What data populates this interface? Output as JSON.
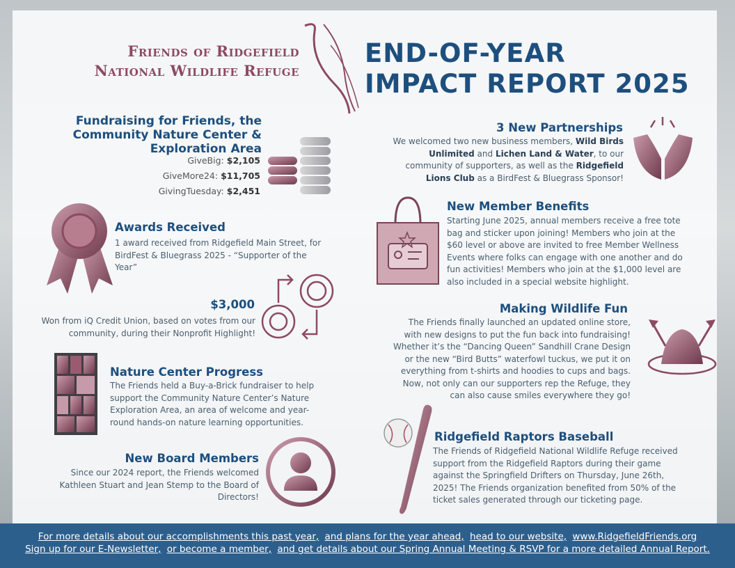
{
  "header": {
    "org_name": [
      "Friends of Ridgefield",
      "National Wildlife Refuge"
    ],
    "title": [
      "END-OF-YEAR",
      "IMPACT REPORT 2025"
    ]
  },
  "sections": {
    "fundraising": {
      "heading": "Fundraising for Friends, the Community Nature Center & Exploration Area",
      "items": [
        {
          "label": "GiveBig:",
          "value": "$2,105"
        },
        {
          "label": "GiveMore24:",
          "value": "$11,705"
        },
        {
          "label": "GivingTuesday:",
          "value": "$2,451"
        }
      ]
    },
    "awards": {
      "heading": "Awards Received",
      "body": "1 award received from Ridgefield Main Street, for BirdFest & Bluegrass 2025 - “Supporter of the Year”"
    },
    "prize": {
      "heading": "$3,000",
      "body": "Won from iQ Credit Union, based on votes from our community, during their Nonprofit Highlight!"
    },
    "nature_center": {
      "heading": "Nature Center Progress",
      "body": "The Friends held a Buy-a-Brick fundraiser to help support the Community Nature Center’s Nature Exploration Area, an area of welcome and year-round hands-on nature learning opportunities."
    },
    "board": {
      "heading": "New Board Members",
      "body": "Since our 2024 report, the Friends welcomed Kathleen Stuart and Jean Stemp to the Board of Directors!"
    },
    "partnerships": {
      "heading": "3 New Partnerships",
      "body": [
        "We welcomed two new business members, ",
        "Wild Birds Unlimited",
        " and ",
        "Lichen Land & Water",
        ", to our community of supporters, as well as the ",
        "Ridgefield Lions Club",
        " as a BirdFest & Bluegrass Sponsor!"
      ]
    },
    "member_benefits": {
      "heading": "New Member Benefits",
      "body": "Starting June 2025, annual members receive a free tote bag and sticker upon joining! Members who join at the $60 level or above are invited to free Member Wellness Events where folks can engage with one another and do fun activities! Members who join at the $1,000 level are also included in a special website highlight."
    },
    "wildlife_fun": {
      "heading": "Making Wildlife Fun",
      "body": "The Friends finally launched an updated online store, with new designs to put the fun back into fundraising! Whether it’s the “Dancing Queen” Sandhill Crane Design or the new “Bird Butts” waterfowl tuckus, we put it on everything from t-shirts and hoodies to cups and bags. Now, not only can our supporters rep the Refuge, they can also cause smiles everywhere they go!"
    },
    "baseball": {
      "heading": "Ridgefield Raptors Baseball",
      "body": "The Friends of Ridgefield National Wildlife Refuge received support from the Ridgefield Raptors during their game against the Springfield Drifters on Thursday, June 26th, 2025! The Friends organization benefited from 50% of the ticket sales generated through our ticketing page."
    }
  },
  "footer": {
    "lines": [
      [
        "For more details about our accomplishments this past year,",
        "and plans for the year ahead,",
        "head to our website,",
        "www.RidgefieldFriends.org"
      ],
      [
        "Sign up for our E-Newsletter,",
        "or become a member,",
        "and get details about our Spring Annual Meeting & RSVP for a more detailed Annual Report."
      ]
    ]
  }
}
